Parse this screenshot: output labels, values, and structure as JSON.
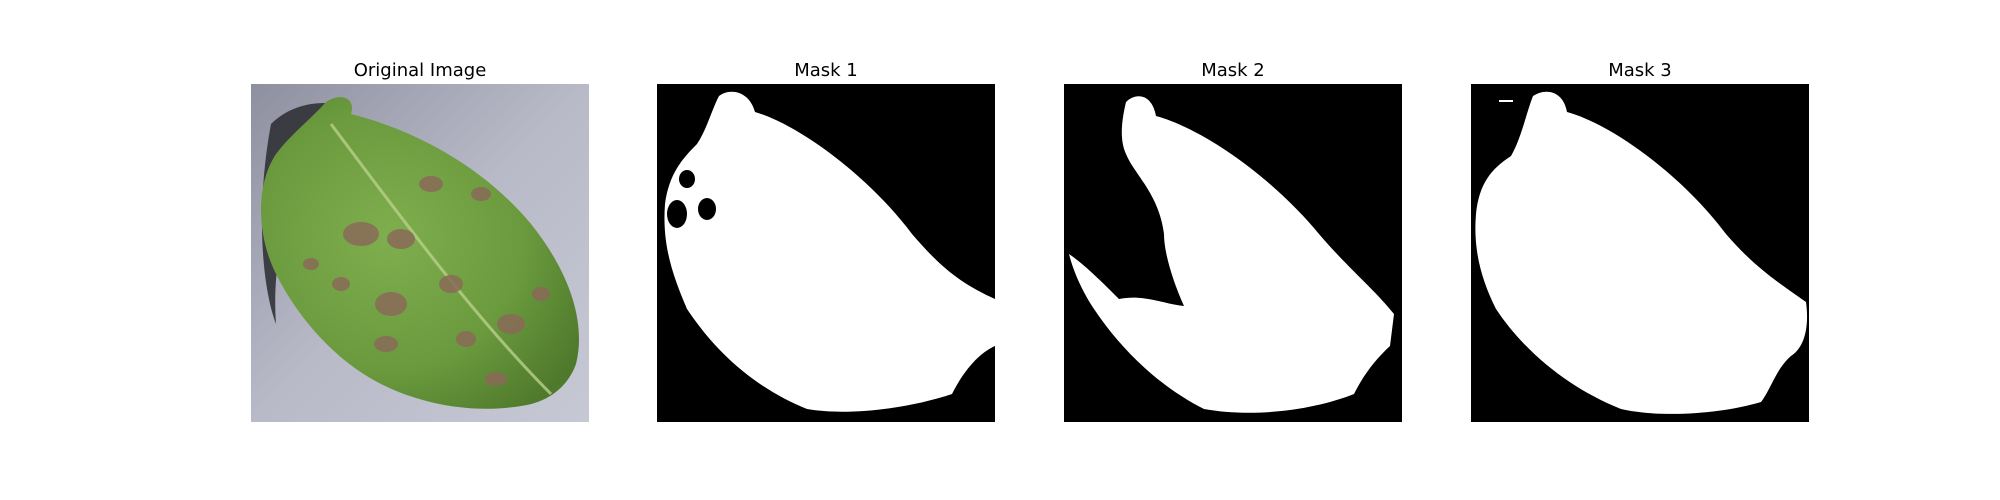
{
  "panels": [
    {
      "title": "Original Image",
      "kind": "photo",
      "description": "green potato leaf with brown lesions on gray background"
    },
    {
      "title": "Mask 1",
      "kind": "mask"
    },
    {
      "title": "Mask 2",
      "kind": "mask"
    },
    {
      "title": "Mask 3",
      "kind": "mask"
    }
  ],
  "colors": {
    "background": "#ffffff",
    "mask_foreground": "#ffffff",
    "mask_background": "#000000",
    "leaf_green": "#6b9a3e",
    "leaf_dark": "#4f7a2c",
    "lesion_brown": "#8a6a58",
    "backdrop_gray": "#b4b6c4",
    "shadow": "#2a2a30"
  }
}
